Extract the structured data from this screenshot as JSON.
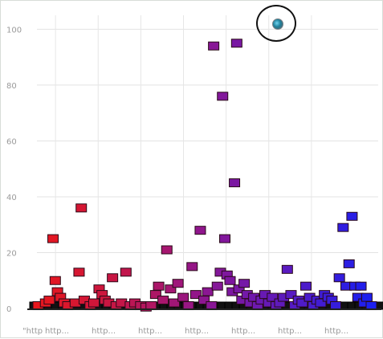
{
  "chart_data": {
    "type": "scatter",
    "ylim": [
      0,
      105
    ],
    "yticks": [
      0,
      20,
      40,
      60,
      80,
      100
    ],
    "x_tick_labels": [
      "\"http",
      "http...",
      "http...",
      "http...",
      "http...",
      "http...",
      "http...",
      "http..."
    ],
    "grid": true,
    "marker": "square",
    "color_gradient": [
      "#e8171c",
      "#c41648",
      "#8d1691",
      "#5a1ac0",
      "#1b1ff0"
    ],
    "points": [
      {
        "x": 1,
        "y": 1
      },
      {
        "x": 2,
        "y": 2
      },
      {
        "x": 2.5,
        "y": 3
      },
      {
        "x": 3,
        "y": 25
      },
      {
        "x": 3.3,
        "y": 10
      },
      {
        "x": 3.6,
        "y": 6
      },
      {
        "x": 4,
        "y": 4
      },
      {
        "x": 4.5,
        "y": 2
      },
      {
        "x": 5,
        "y": 1
      },
      {
        "x": 6,
        "y": 2
      },
      {
        "x": 6.5,
        "y": 13
      },
      {
        "x": 6.8,
        "y": 36
      },
      {
        "x": 7.2,
        "y": 3
      },
      {
        "x": 8,
        "y": 1
      },
      {
        "x": 8.5,
        "y": 2
      },
      {
        "x": 9.2,
        "y": 7
      },
      {
        "x": 9.6,
        "y": 5
      },
      {
        "x": 10,
        "y": 3
      },
      {
        "x": 10.5,
        "y": 2
      },
      {
        "x": 11,
        "y": 11
      },
      {
        "x": 11.5,
        "y": 1
      },
      {
        "x": 12.2,
        "y": 2
      },
      {
        "x": 12.8,
        "y": 13
      },
      {
        "x": 13.4,
        "y": 1
      },
      {
        "x": 14,
        "y": 2
      },
      {
        "x": 14.8,
        "y": 1
      },
      {
        "x": 15.5,
        "y": 0.5
      },
      {
        "x": 16.2,
        "y": 1
      },
      {
        "x": 16.8,
        "y": 5
      },
      {
        "x": 17.2,
        "y": 8
      },
      {
        "x": 17.8,
        "y": 3
      },
      {
        "x": 18.3,
        "y": 21
      },
      {
        "x": 18.8,
        "y": 7
      },
      {
        "x": 19.3,
        "y": 2
      },
      {
        "x": 19.8,
        "y": 9
      },
      {
        "x": 20.5,
        "y": 4
      },
      {
        "x": 21.2,
        "y": 1
      },
      {
        "x": 21.7,
        "y": 15
      },
      {
        "x": 22.2,
        "y": 5
      },
      {
        "x": 22.8,
        "y": 28
      },
      {
        "x": 23.3,
        "y": 3
      },
      {
        "x": 23.8,
        "y": 6
      },
      {
        "x": 24.3,
        "y": 1
      },
      {
        "x": 24.6,
        "y": 94
      },
      {
        "x": 25.1,
        "y": 8
      },
      {
        "x": 25.5,
        "y": 13
      },
      {
        "x": 25.8,
        "y": 76
      },
      {
        "x": 26.1,
        "y": 25
      },
      {
        "x": 26.4,
        "y": 12
      },
      {
        "x": 26.8,
        "y": 10
      },
      {
        "x": 27.1,
        "y": 6
      },
      {
        "x": 27.4,
        "y": 45
      },
      {
        "x": 27.7,
        "y": 95
      },
      {
        "x": 28,
        "y": 7
      },
      {
        "x": 28.4,
        "y": 3
      },
      {
        "x": 28.7,
        "y": 9
      },
      {
        "x": 29.1,
        "y": 5
      },
      {
        "x": 29.5,
        "y": 2
      },
      {
        "x": 30,
        "y": 4
      },
      {
        "x": 30.5,
        "y": 1
      },
      {
        "x": 31,
        "y": 3
      },
      {
        "x": 31.5,
        "y": 5
      },
      {
        "x": 32,
        "y": 2
      },
      {
        "x": 32.5,
        "y": 4
      },
      {
        "x": 33,
        "y": 1
      },
      {
        "x": 33.5,
        "y": 2
      },
      {
        "x": 34,
        "y": 4
      },
      {
        "x": 34.5,
        "y": 14
      },
      {
        "x": 35,
        "y": 5
      },
      {
        "x": 35.5,
        "y": 1
      },
      {
        "x": 36,
        "y": 3
      },
      {
        "x": 36.5,
        "y": 2
      },
      {
        "x": 37,
        "y": 8
      },
      {
        "x": 37.5,
        "y": 4
      },
      {
        "x": 38,
        "y": 1
      },
      {
        "x": 38.5,
        "y": 3
      },
      {
        "x": 39,
        "y": 2
      },
      {
        "x": 39.5,
        "y": 5
      },
      {
        "x": 40,
        "y": 4
      },
      {
        "x": 40.5,
        "y": 3
      },
      {
        "x": 41,
        "y": 1
      },
      {
        "x": 41.5,
        "y": 11
      },
      {
        "x": 42,
        "y": 29
      },
      {
        "x": 42.4,
        "y": 8
      },
      {
        "x": 42.8,
        "y": 16
      },
      {
        "x": 43.2,
        "y": 33
      },
      {
        "x": 43.6,
        "y": 8
      },
      {
        "x": 44,
        "y": 4
      },
      {
        "x": 44.4,
        "y": 8
      },
      {
        "x": 44.8,
        "y": 2
      },
      {
        "x": 45.2,
        "y": 4
      },
      {
        "x": 45.8,
        "y": 1
      }
    ]
  }
}
